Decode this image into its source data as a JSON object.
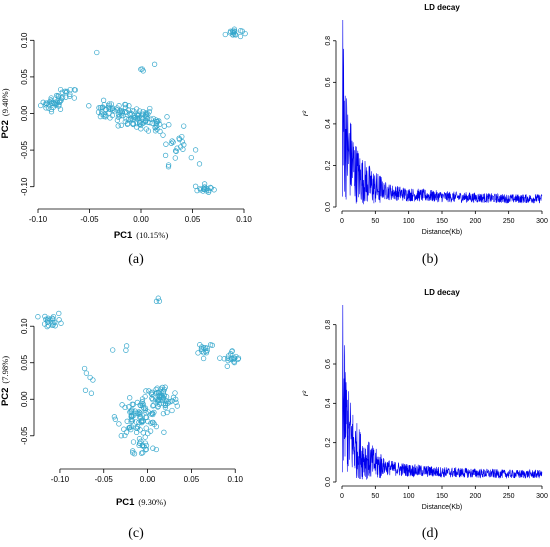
{
  "captions": [
    "(a)",
    "(b)",
    "(c)",
    "(d)"
  ],
  "chart_data": [
    {
      "type": "scatter",
      "xlabel": "PC1",
      "xlabel_pct": "(10.15%)",
      "ylabel": "PC2",
      "ylabel_pct": "(9.40%)",
      "xlim": [
        -0.1,
        0.1
      ],
      "ylim": [
        -0.125,
        0.125
      ],
      "xticks": [
        "-0.10",
        "-0.05",
        "0.00",
        "0.05",
        "0.10"
      ],
      "yticks": [
        "-0.10",
        "-0.05",
        "0.00",
        "0.05",
        "0.10"
      ],
      "color": "#35a7cc",
      "clusters": [
        {
          "x": -0.085,
          "y": 0.013,
          "sx": 0.006,
          "sy": 0.004,
          "n": 30
        },
        {
          "x": -0.072,
          "y": 0.025,
          "sx": 0.005,
          "sy": 0.005,
          "n": 18
        },
        {
          "x": -0.03,
          "y": 0.003,
          "sx": 0.01,
          "sy": 0.006,
          "n": 45
        },
        {
          "x": -0.005,
          "y": -0.005,
          "sx": 0.009,
          "sy": 0.008,
          "n": 60
        },
        {
          "x": 0.015,
          "y": -0.015,
          "sx": 0.007,
          "sy": 0.007,
          "n": 25
        },
        {
          "x": 0.035,
          "y": -0.045,
          "sx": 0.008,
          "sy": 0.012,
          "n": 22
        },
        {
          "x": 0.062,
          "y": -0.103,
          "sx": 0.005,
          "sy": 0.003,
          "n": 18
        },
        {
          "x": 0.09,
          "y": 0.11,
          "sx": 0.004,
          "sy": 0.003,
          "n": 18
        },
        {
          "x": 0.005,
          "y": 0.062,
          "sx": 0.004,
          "sy": 0.003,
          "n": 4
        },
        {
          "x": -0.04,
          "y": 0.085,
          "sx": 0.002,
          "sy": 0.002,
          "n": 1
        }
      ]
    },
    {
      "type": "line",
      "title": "LD decay",
      "xlabel": "Distance(Kb)",
      "ylabel": "r²",
      "xlim": [
        0,
        300
      ],
      "ylim": [
        0,
        0.9
      ],
      "xticks": [
        "0",
        "50",
        "100",
        "150",
        "200",
        "250",
        "300"
      ],
      "yticks": [
        "0.0",
        "0.2",
        "0.4",
        "0.6",
        "0.8"
      ],
      "color": "#0000ee",
      "x": [
        0,
        2,
        5,
        10,
        20,
        30,
        50,
        75,
        100,
        150,
        200,
        250,
        300
      ],
      "y_mean": [
        0.7,
        0.45,
        0.33,
        0.25,
        0.17,
        0.13,
        0.09,
        0.07,
        0.06,
        0.05,
        0.045,
        0.04,
        0.04
      ],
      "peak": 0.9
    },
    {
      "type": "scatter",
      "xlabel": "PC1",
      "xlabel_pct": "(9.30%)",
      "ylabel": "PC2",
      "ylabel_pct": "(7.98%)",
      "xlim": [
        -0.125,
        0.11
      ],
      "ylim": [
        -0.09,
        0.14
      ],
      "xticks": [
        "-0.10",
        "-0.05",
        "0.00",
        "0.05",
        "0.10"
      ],
      "yticks": [
        "-0.05",
        "0.00",
        "0.05",
        "0.10"
      ],
      "color": "#35a7cc",
      "clusters": [
        {
          "x": -0.108,
          "y": 0.108,
          "sx": 0.006,
          "sy": 0.005,
          "n": 22
        },
        {
          "x": -0.07,
          "y": 0.03,
          "sx": 0.006,
          "sy": 0.012,
          "n": 6
        },
        {
          "x": -0.01,
          "y": -0.025,
          "sx": 0.012,
          "sy": 0.012,
          "n": 90
        },
        {
          "x": 0.015,
          "y": 0.0,
          "sx": 0.01,
          "sy": 0.01,
          "n": 60
        },
        {
          "x": -0.005,
          "y": -0.065,
          "sx": 0.007,
          "sy": 0.006,
          "n": 18
        },
        {
          "x": 0.065,
          "y": 0.07,
          "sx": 0.006,
          "sy": 0.005,
          "n": 16
        },
        {
          "x": 0.097,
          "y": 0.055,
          "sx": 0.005,
          "sy": 0.006,
          "n": 20
        },
        {
          "x": 0.01,
          "y": 0.133,
          "sx": 0.004,
          "sy": 0.003,
          "n": 3
        },
        {
          "x": -0.04,
          "y": 0.07,
          "sx": 0.01,
          "sy": 0.003,
          "n": 3
        }
      ]
    },
    {
      "type": "line",
      "title": "LD decay",
      "xlabel": "Distance(Kb)",
      "ylabel": "r²",
      "xlim": [
        0,
        300
      ],
      "ylim": [
        0,
        0.9
      ],
      "xticks": [
        "0",
        "50",
        "100",
        "150",
        "200",
        "250",
        "300"
      ],
      "yticks": [
        "0.0",
        "0.2",
        "0.4",
        "0.6",
        "0.8"
      ],
      "color": "#0000ee",
      "x": [
        0,
        2,
        5,
        10,
        20,
        30,
        50,
        75,
        100,
        150,
        200,
        250,
        300
      ],
      "y_mean": [
        0.7,
        0.45,
        0.33,
        0.25,
        0.17,
        0.13,
        0.09,
        0.07,
        0.06,
        0.05,
        0.045,
        0.04,
        0.04
      ],
      "peak": 0.9
    }
  ]
}
